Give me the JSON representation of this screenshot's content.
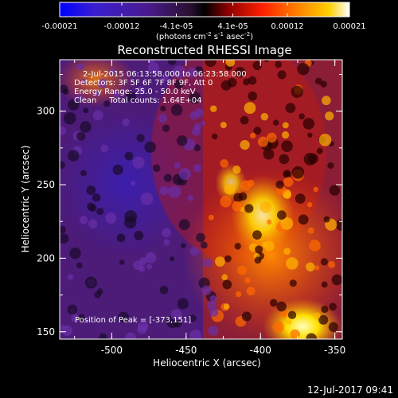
{
  "colorbar": {
    "tick_labels": [
      "-0.00021",
      "-0.00012",
      "-4.1e-05",
      "4.1e-05",
      "0.00012",
      "0.00021"
    ],
    "tick_values": [
      -0.00021,
      -0.00012,
      -4.1e-05,
      4.1e-05,
      0.00012,
      0.00021
    ],
    "range": [
      -0.00021,
      0.00021
    ],
    "units_label": "(photons cm",
    "units_exp1": "-2",
    "units_mid": " s",
    "units_exp2": "-1",
    "units_end": " asec",
    "units_exp3": "-2",
    "units_close": ")",
    "colormap": [
      "#0000ff",
      "#4a1ab0",
      "#2a1040",
      "#000000",
      "#8b0000",
      "#ff2000",
      "#ff8000",
      "#ffd000",
      "#ffffff"
    ]
  },
  "annotations": {
    "line1": "2-Jul-2015 06:13:58.000 to 06:23:58.000",
    "line2": "Detectors: 3F 5F 6F 7F 8F 9F, Att 0",
    "line3": "Energy Range: 25.0 - 50.0 keV",
    "line4": "Clean     Total counts: 1.64E+04",
    "peak": "Position of Peak = [-373,151]"
  },
  "footer": {
    "timestamp": "12-Jul-2017 09:41"
  },
  "chart_data": {
    "type": "heatmap",
    "title": "Reconstructed RHESSI Image",
    "xlabel": "Heliocentric X (arcsec)",
    "ylabel": "Heliocentric Y (arcsec)",
    "xlim": [
      -535,
      -345
    ],
    "ylim": [
      145,
      335
    ],
    "x_ticks": [
      -500,
      -450,
      -400,
      -350
    ],
    "x_tick_labels": [
      "-500",
      "-450",
      "-400",
      "-350"
    ],
    "y_ticks": [
      150,
      200,
      250,
      300
    ],
    "y_tick_labels": [
      "150",
      "200",
      "250",
      "300"
    ],
    "peak_position": [
      -373,
      151
    ],
    "grid": false
  }
}
